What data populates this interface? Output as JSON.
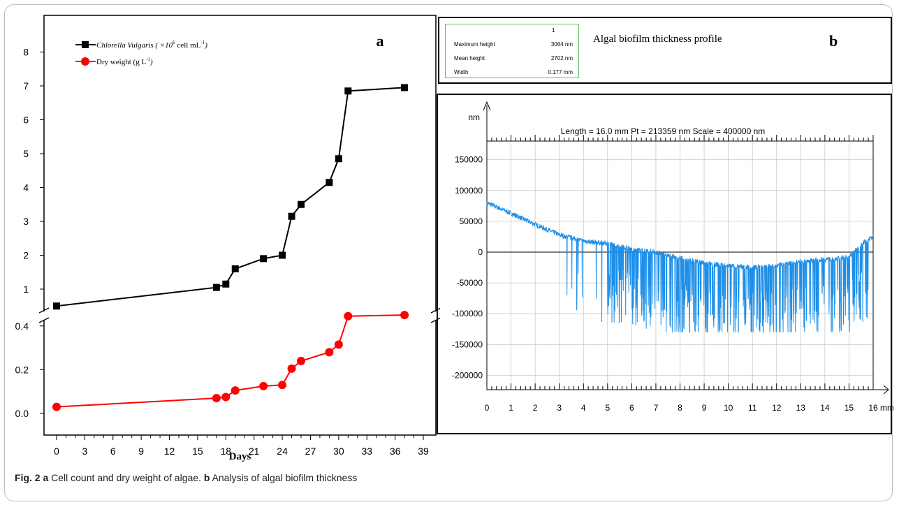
{
  "caption": {
    "label": "Fig. 2",
    "a_letter": "a",
    "a_text": "Cell count and dry weight of algae.",
    "b_letter": "b",
    "b_text": "Analysis of algal biofilm thickness"
  },
  "panel_b_header": {
    "title": "Algal biofilm thickness profile",
    "letter": "b",
    "table": {
      "column": "1",
      "rows": [
        {
          "label": "Maximum height",
          "value": "3064 nm"
        },
        {
          "label": "Mean height",
          "value": "2702 nm"
        },
        {
          "label": "Width",
          "value": "0.177 mm"
        }
      ]
    }
  },
  "chart_data": [
    {
      "type": "line",
      "panel": "a",
      "xlabel": "Days",
      "x_ticks": [
        "0",
        "3",
        "6",
        "9",
        "12",
        "15",
        "18",
        "21",
        "24",
        "27",
        "30",
        "33",
        "36",
        "39"
      ],
      "upper_y_ticks": [
        "1",
        "2",
        "3",
        "4",
        "5",
        "6",
        "7",
        "8"
      ],
      "lower_y_ticks": [
        "0.0",
        "0.2",
        "0.4"
      ],
      "broken_y_axis": true,
      "legend": {
        "placement": "top-left"
      },
      "series": [
        {
          "name": "Chlorella Vulgaris (×10⁶ cell mL⁻¹)",
          "legend_main": "Chlorella Vulgaris",
          "legend_unit": " ( ×10",
          "legend_sup": "6",
          "legend_tail": " cell mL",
          "legend_sup2": "-1",
          "legend_close": ")",
          "color": "#000000",
          "marker": "square",
          "x": [
            0,
            17,
            18,
            19,
            22,
            24,
            25,
            26,
            29,
            30,
            31,
            37
          ],
          "y": [
            0.5,
            1.05,
            1.15,
            1.6,
            1.9,
            2.0,
            3.15,
            3.5,
            4.15,
            4.85,
            6.85,
            6.95
          ]
        },
        {
          "name": "Dry weight (g L⁻¹)",
          "legend_main": "Dry weight (g  L",
          "legend_sup": "-1",
          "legend_close": ")",
          "color": "#ff0000",
          "marker": "circle",
          "x": [
            0,
            17,
            18,
            19,
            22,
            24,
            25,
            26,
            29,
            30,
            31,
            37
          ],
          "y": [
            0.03,
            0.07,
            0.075,
            0.105,
            0.125,
            0.13,
            0.205,
            0.24,
            0.28,
            0.315,
            0.445,
            0.45
          ]
        }
      ],
      "letter": "a"
    },
    {
      "type": "line",
      "panel": "b",
      "annotation": "Length = 16.0 mm  Pt = 213359 nm  Scale = 400000 nm",
      "ylabel": "nm",
      "xunit": "mm",
      "xlim": [
        0,
        16
      ],
      "ylim": [
        -220000,
        175000
      ],
      "grid": true,
      "line_color": "#1e8fe8",
      "x_ticks": [
        "0",
        "1",
        "2",
        "3",
        "4",
        "5",
        "6",
        "7",
        "8",
        "9",
        "10",
        "11",
        "12",
        "13",
        "14",
        "15",
        "16"
      ],
      "y_ticks": [
        "150000",
        "100000",
        "50000",
        "0",
        "-50000",
        "-100000",
        "-150000",
        "-200000"
      ],
      "baseline_points": [
        [
          0,
          80000
        ],
        [
          1,
          63000
        ],
        [
          2,
          45000
        ],
        [
          3,
          28000
        ],
        [
          4,
          18000
        ],
        [
          5,
          14000
        ],
        [
          6,
          5000
        ],
        [
          7,
          0
        ],
        [
          8,
          -10000
        ],
        [
          9,
          -18000
        ],
        [
          10,
          -22000
        ],
        [
          11,
          -25000
        ],
        [
          12,
          -22000
        ],
        [
          13,
          -15000
        ],
        [
          14,
          -12000
        ],
        [
          15,
          -8000
        ],
        [
          15.6,
          15000
        ],
        [
          16,
          25000
        ]
      ]
    }
  ]
}
